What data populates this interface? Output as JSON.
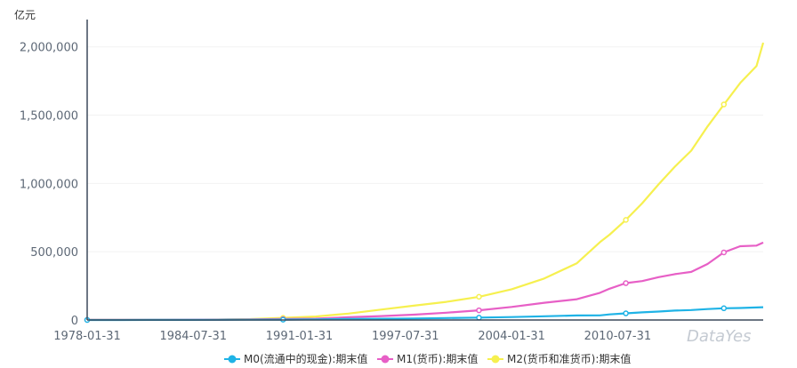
{
  "chart_data": {
    "type": "line",
    "unit": "亿元",
    "x_ticks": [
      "1978-01-31",
      "1984-07-31",
      "1991-01-31",
      "1997-07-31",
      "2004-01-31",
      "2010-07-31"
    ],
    "x_tick_dates": [
      "1978-01-31",
      "1984-07-31",
      "1991-01-31",
      "1997-07-31",
      "2004-01-31",
      "2010-07-31"
    ],
    "xlim": [
      "1978-01-31",
      "2019-06-30"
    ],
    "y_ticks": [
      "0",
      "500,000",
      "1,000,000",
      "1,500,000",
      "2,000,000"
    ],
    "y_tick_values": [
      0,
      500000,
      1000000,
      1500000,
      2000000
    ],
    "ylim": [
      0,
      2200000
    ],
    "grid": true,
    "legend_position": "bottom-center",
    "watermark": "DataYes",
    "x": [
      "1978-01-31",
      "1980-01-31",
      "1982-01-31",
      "1984-01-31",
      "1986-01-31",
      "1988-01-31",
      "1990-01-31",
      "1992-01-31",
      "1994-01-31",
      "1996-01-31",
      "1998-01-31",
      "2000-01-31",
      "2002-01-31",
      "2004-01-31",
      "2006-01-31",
      "2008-01-31",
      "2009-06-30",
      "2010-01-31",
      "2011-01-31",
      "2012-01-31",
      "2013-01-31",
      "2014-01-31",
      "2015-01-31",
      "2016-01-31",
      "2017-01-31",
      "2018-01-31",
      "2019-01-31",
      "2019-06-30"
    ],
    "series": [
      {
        "name": "M0(流通中的现金):期末值",
        "color": "#1fb3e6",
        "marker": "circle",
        "values": [
          200,
          300,
          400,
          800,
          1200,
          2200,
          2600,
          4300,
          7300,
          8800,
          11200,
          14600,
          17300,
          21500,
          27100,
          33000,
          34000,
          40700,
          48600,
          55900,
          62000,
          68800,
          72800,
          80000,
          86000,
          87800,
          92000,
          94000
        ]
      },
      {
        "name": "M1(货币):期末值",
        "color": "#e75fc6",
        "marker": "circle",
        "values": [
          900,
          1100,
          1400,
          1800,
          2900,
          4500,
          6900,
          9600,
          20500,
          28500,
          38900,
          53100,
          70900,
          95900,
          126000,
          152000,
          199000,
          229000,
          270000,
          285000,
          314000,
          336000,
          352000,
          410000,
          495000,
          540000,
          545000,
          567000
        ]
      },
      {
        "name": "M2(货币和准货币):期末值",
        "color": "#f6f04f",
        "marker": "circle",
        "values": [
          900,
          1200,
          1600,
          2100,
          3500,
          6700,
          15300,
          25400,
          46900,
          76100,
          104500,
          133000,
          170000,
          225000,
          304000,
          416000,
          570000,
          625000,
          733000,
          855000,
          993000,
          1123000,
          1240000,
          1417000,
          1578000,
          1735000,
          1860000,
          2030000
        ]
      }
    ]
  }
}
